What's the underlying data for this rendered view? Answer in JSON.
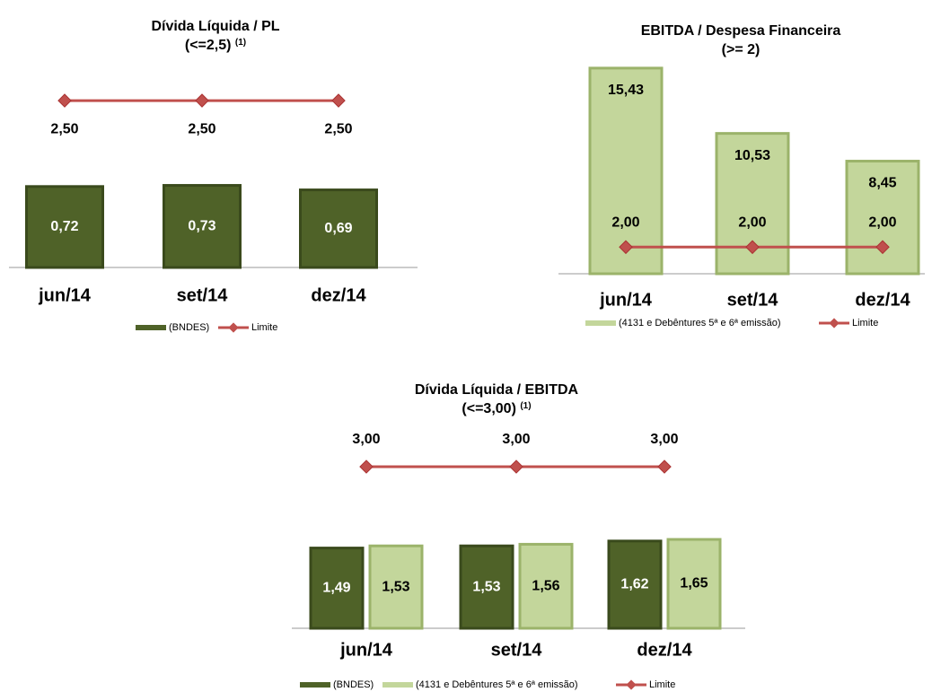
{
  "chart_data": [
    {
      "type": "bar",
      "title": "Dívida Líquida / PL",
      "subtitle": "(<=2,5)",
      "subtitle_note": "(1)",
      "categories": [
        "jun/14",
        "set/14",
        "dez/14"
      ],
      "ylim": [
        0,
        1.9
      ],
      "y2lim": [
        0,
        3.2
      ],
      "series": [
        {
          "name": "(BNDES)",
          "color": "#4f6228",
          "values": [
            0.72,
            0.73,
            0.69
          ],
          "value_labels": [
            "0,72",
            "0,73",
            "0,69"
          ]
        },
        {
          "name": "Limite",
          "color": "#c0504d",
          "kind": "line",
          "axis": "y2",
          "values": [
            2.5,
            2.5,
            2.5
          ],
          "value_labels": [
            "2,50",
            "2,50",
            "2,50"
          ]
        }
      ]
    },
    {
      "type": "bar",
      "title": "EBITDA / Despesa Financeira",
      "subtitle": "(>= 2)",
      "categories": [
        "jun/14",
        "set/14",
        "dez/14"
      ],
      "ylim": [
        0,
        16.5
      ],
      "series": [
        {
          "name": "(4131 e Debêntures 5ª e 6ª emissão)",
          "color": "#c3d69b",
          "values": [
            15.43,
            10.53,
            8.45
          ],
          "value_labels": [
            "15,43",
            "10,53",
            "8,45"
          ]
        },
        {
          "name": "Limite",
          "color": "#c0504d",
          "kind": "line",
          "values": [
            2,
            2,
            2
          ],
          "value_labels": [
            "2,00",
            "2,00",
            "2,00"
          ]
        }
      ]
    },
    {
      "type": "bar",
      "title": "Dívida Líquida / EBITDA",
      "subtitle": "(<=3,00)",
      "subtitle_note": "(1)",
      "categories": [
        "jun/14",
        "set/14",
        "dez/14"
      ],
      "ylim": [
        0,
        4.0
      ],
      "series": [
        {
          "name": "(BNDES)",
          "color": "#4f6228",
          "values": [
            1.49,
            1.53,
            1.62
          ],
          "value_labels": [
            "1,49",
            "1,53",
            "1,62"
          ]
        },
        {
          "name": "(4131 e Debêntures 5ª e 6ª emissão)",
          "color": "#c3d69b",
          "values": [
            1.53,
            1.56,
            1.65
          ],
          "value_labels": [
            "1,53",
            "1,56",
            "1,65"
          ]
        },
        {
          "name": "Limite",
          "color": "#c0504d",
          "kind": "line",
          "values": [
            3,
            3,
            3
          ],
          "value_labels": [
            "3,00",
            "3,00",
            "3,00"
          ]
        }
      ]
    }
  ]
}
